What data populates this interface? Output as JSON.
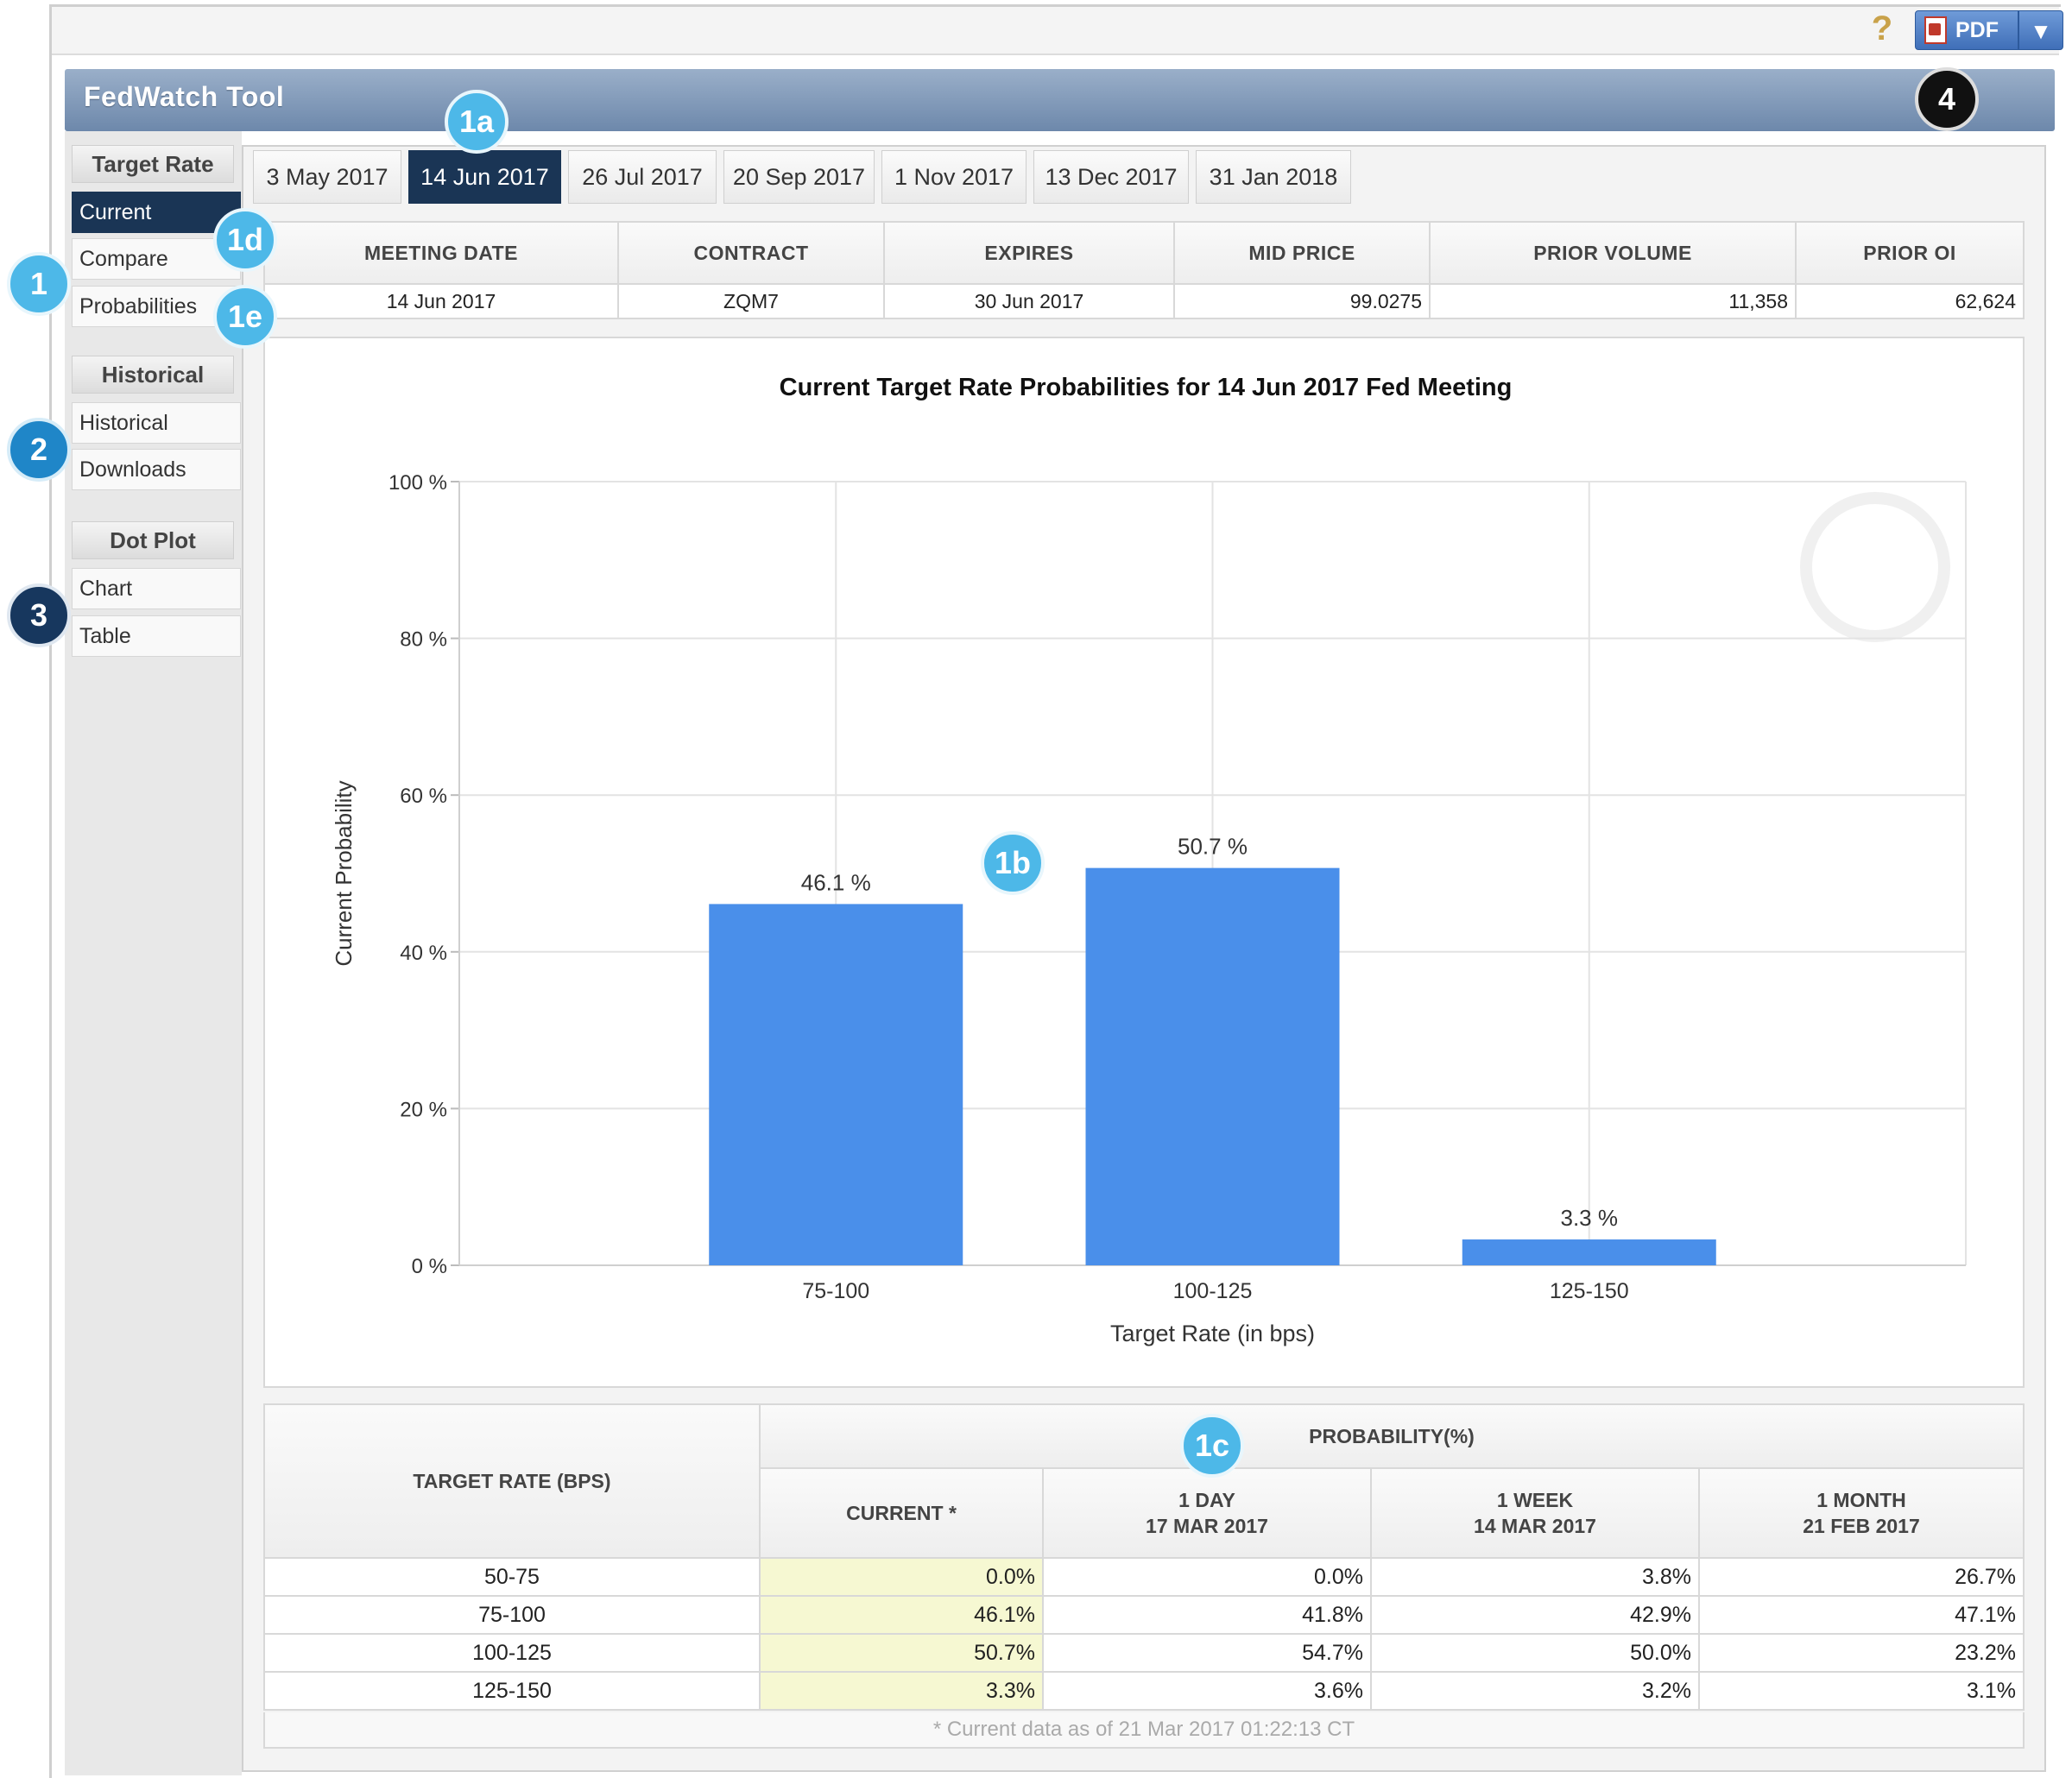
{
  "toolbar": {
    "help_icon": "question-mark-icon",
    "pdf_label": "PDF"
  },
  "title": "FedWatch Tool",
  "sidebar": {
    "sections": [
      {
        "heading": "Target Rate",
        "items": [
          "Current",
          "Compare",
          "Probabilities"
        ]
      },
      {
        "heading": "Historical",
        "items": [
          "Historical",
          "Downloads"
        ]
      },
      {
        "heading": "Dot Plot",
        "items": [
          "Chart",
          "Table"
        ]
      }
    ],
    "active_item": "Current"
  },
  "date_tabs": [
    "3 May 2017",
    "14 Jun 2017",
    "26 Jul 2017",
    "20 Sep 2017",
    "1 Nov 2017",
    "13 Dec 2017",
    "31 Jan 2018"
  ],
  "active_tab": "14 Jun 2017",
  "contract_table": {
    "headers": [
      "MEETING DATE",
      "CONTRACT",
      "EXPIRES",
      "MID PRICE",
      "PRIOR VOLUME",
      "PRIOR OI"
    ],
    "row": [
      "14 Jun 2017",
      "ZQM7",
      "30 Jun 2017",
      "99.0275",
      "11,358",
      "62,624"
    ]
  },
  "chart_data": {
    "type": "bar",
    "title": "Current Target Rate Probabilities for 14 Jun 2017 Fed Meeting",
    "xlabel": "Target Rate (in bps)",
    "ylabel": "Current Probability",
    "categories": [
      "75-100",
      "100-125",
      "125-150"
    ],
    "values": [
      46.1,
      50.7,
      3.3
    ],
    "data_labels": [
      "46.1 %",
      "50.7 %",
      "3.3 %"
    ],
    "ylim": [
      0,
      100
    ],
    "yticks": [
      "0 %",
      "20 %",
      "40 %",
      "60 %",
      "80 %",
      "100 %"
    ],
    "grid": true,
    "bar_color": "#4a8fea"
  },
  "probability_table": {
    "rate_header": "TARGET RATE (BPS)",
    "group_header": "PROBABILITY(%)",
    "columns": [
      {
        "line1": "CURRENT *",
        "line2": ""
      },
      {
        "line1": "1 DAY",
        "line2": "17 MAR 2017"
      },
      {
        "line1": "1 WEEK",
        "line2": "14 MAR 2017"
      },
      {
        "line1": "1 MONTH",
        "line2": "21 FEB 2017"
      }
    ],
    "rows": [
      {
        "rate": "50-75",
        "values": [
          "0.0%",
          "0.0%",
          "3.8%",
          "26.7%"
        ]
      },
      {
        "rate": "75-100",
        "values": [
          "46.1%",
          "41.8%",
          "42.9%",
          "47.1%"
        ]
      },
      {
        "rate": "100-125",
        "values": [
          "50.7%",
          "54.7%",
          "50.0%",
          "23.2%"
        ]
      },
      {
        "rate": "125-150",
        "values": [
          "3.3%",
          "3.6%",
          "3.2%",
          "3.1%"
        ]
      }
    ],
    "footnote": "* Current data as of 21 Mar 2017 01:22:13 CT"
  },
  "callouts": [
    "1a",
    "1b",
    "1c",
    "1d",
    "1e",
    "1",
    "2",
    "3",
    "4"
  ]
}
